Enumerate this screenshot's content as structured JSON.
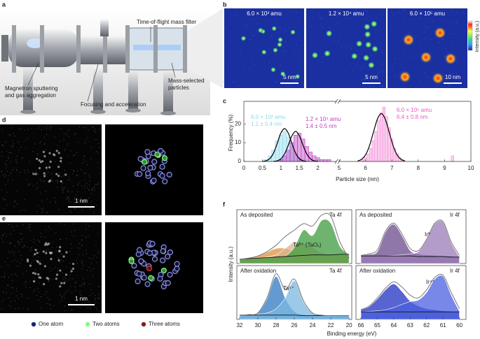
{
  "panel_labels": [
    "a",
    "b",
    "c",
    "d",
    "e",
    "f"
  ],
  "panel_a": {
    "labels": [
      "Time-of-flight mass filter",
      "Magnetron sputtering",
      "and gas aggregation",
      "Focusing and acceleration",
      "Mass-selected",
      "particles"
    ]
  },
  "panel_b": {
    "images": [
      {
        "label": "6.0 × 10³ amu",
        "scale_bar": "5 nm"
      },
      {
        "label": "1.2 × 10⁴ amu",
        "scale_bar": "5 nm"
      },
      {
        "label": "6.0 × 10⁵ amu",
        "scale_bar": "10 nm"
      }
    ],
    "colorbar_label": "Intensity (a.u.)"
  },
  "panel_d": {
    "scale_bar": "1 nm"
  },
  "panel_e": {
    "scale_bar": "1 nm"
  },
  "legend": [
    {
      "label": "One atom",
      "color": "#1a237e"
    },
    {
      "label": "Two atoms",
      "color": "#7dff7d"
    },
    {
      "label": "Three atoms",
      "color": "#8b1a1a"
    }
  ],
  "panel_f": {
    "xlabel": "Binding energy (eV)",
    "ylabel": "Intensity (a.u.)"
  },
  "chart_data": [
    {
      "type": "histogram",
      "xlabel": "Particle size (nm)",
      "ylabel": "Frequency (%)",
      "xlim": [
        0,
        10
      ],
      "x_break": [
        2.5,
        5
      ],
      "ylim": [
        0,
        32
      ],
      "xticks": [
        0,
        0.5,
        1,
        1.5,
        2,
        5,
        6,
        7,
        8,
        9,
        10
      ],
      "yticks": [
        0,
        10,
        20
      ],
      "bin_width": 0.1,
      "series": [
        {
          "color": "#8fd8ee",
          "x": [
            0.6,
            0.7,
            0.8,
            0.9,
            1.0,
            1.1,
            1.2,
            1.3,
            1.4,
            1.5,
            1.6
          ],
          "values": [
            1,
            3,
            6,
            11,
            14,
            16,
            13,
            8,
            4,
            2,
            1
          ]
        },
        {
          "color": "#c23bc2",
          "x": [
            1.0,
            1.1,
            1.2,
            1.3,
            1.4,
            1.5,
            1.6,
            1.7,
            1.8,
            1.9,
            2.0,
            2.1,
            2.2,
            2.3
          ],
          "values": [
            1,
            3,
            6,
            10,
            14,
            15,
            12,
            8,
            5,
            3,
            2,
            1,
            1,
            1
          ]
        },
        {
          "color": "#f590d8",
          "x": [
            5.9,
            6.0,
            6.1,
            6.2,
            6.3,
            6.4,
            6.5,
            6.6,
            6.7,
            6.8,
            6.9,
            7.0,
            7.1,
            7.2,
            7.3,
            7.4,
            9.3
          ],
          "values": [
            1,
            2,
            4,
            7,
            11,
            16,
            22,
            26,
            29,
            24,
            18,
            12,
            7,
            4,
            2,
            1,
            3
          ]
        }
      ],
      "fits": [
        {
          "color": "#000000",
          "x": [
            0.5,
            0.6,
            0.7,
            0.8,
            0.9,
            1.0,
            1.1,
            1.2,
            1.3,
            1.4,
            1.5,
            1.6,
            1.7
          ],
          "values": [
            0.06,
            0.37,
            1.5,
            4.4,
            9.5,
            15.1,
            17.5,
            15.1,
            9.5,
            4.4,
            1.5,
            0.37,
            0.06
          ]
        },
        {
          "color": "#000000",
          "x": [
            0.8,
            0.9,
            1.0,
            1.1,
            1.2,
            1.3,
            1.4,
            1.5,
            1.6,
            1.7,
            1.8,
            1.9,
            2.0
          ],
          "values": [
            0.06,
            0.34,
            1.4,
            4.0,
            8.6,
            13.7,
            16,
            13.7,
            8.6,
            4.0,
            1.4,
            0.34,
            0.06
          ]
        },
        {
          "color": "#000000",
          "x": [
            5.7,
            5.85,
            6.0,
            6.15,
            6.3,
            6.45,
            6.6,
            6.75,
            6.9,
            7.05,
            7.2,
            7.35,
            7.5
          ],
          "values": [
            0.28,
            1.12,
            3.45,
            8.3,
            15.5,
            22.5,
            25.5,
            22.5,
            15.5,
            8.3,
            3.45,
            1.12,
            0.28
          ]
        }
      ],
      "annotations": [
        {
          "text": "6.0 × 10³ amu",
          "color": "#8fd8ee"
        },
        {
          "text": "1.1 ± 0.4 nm",
          "color": "#8fd8ee"
        },
        {
          "text": "1.2 × 10⁴ amu",
          "color": "#c23bc2"
        },
        {
          "text": "1.4 ± 0.5 nm",
          "color": "#c23bc2"
        },
        {
          "text": "6.0 × 10⁵ amu",
          "color": "#e85cc0"
        },
        {
          "text": "6.4 ± 0.8 nm",
          "color": "#e85cc0"
        }
      ]
    },
    {
      "type": "area",
      "xlim": [
        32.3,
        19.7
      ],
      "ylim": [
        0,
        100
      ],
      "x": [
        32,
        31,
        30,
        29,
        28,
        27,
        26,
        25,
        24,
        23,
        22,
        21,
        20
      ],
      "envelope": [
        8,
        10,
        14,
        22,
        34,
        50,
        62,
        74,
        70,
        90,
        88,
        40,
        10
      ],
      "background": [
        8,
        9,
        10,
        11,
        12,
        13,
        14,
        15,
        16,
        16,
        16,
        17,
        17
      ],
      "series": [
        {
          "color": "#e09040",
          "values": [
            8,
            10,
            14,
            21,
            28,
            28,
            22,
            17,
            16,
            16,
            16,
            17,
            17
          ]
        },
        {
          "color": "#d9b48f",
          "values": [
            8,
            9,
            10,
            12,
            16,
            28,
            40,
            38,
            30,
            20,
            16,
            17,
            17
          ]
        },
        {
          "color": "#3d9b3d",
          "values": [
            8,
            9,
            10,
            11,
            12,
            14,
            30,
            62,
            52,
            80,
            75,
            32,
            17
          ]
        }
      ],
      "annotations": [
        "As deposited",
        "Ta 4f",
        "Taᵟ⁺ (TaOₓ)"
      ]
    },
    {
      "type": "area",
      "xlim": [
        66.3,
        59.6
      ],
      "ylim": [
        0,
        100
      ],
      "x": [
        66,
        65.5,
        65,
        64.5,
        64,
        63.5,
        63,
        62.5,
        62,
        61.5,
        61,
        60.5,
        60
      ],
      "envelope": [
        15,
        18,
        25,
        60,
        75,
        55,
        28,
        24,
        45,
        75,
        78,
        40,
        15
      ],
      "background": [
        14,
        14,
        14,
        14,
        14,
        14,
        14,
        13,
        13,
        13,
        13,
        12,
        12
      ],
      "series": [
        {
          "color": "#6a4a8c",
          "values": [
            15,
            17,
            22,
            58,
            73,
            52,
            24,
            18,
            16,
            15,
            14,
            13,
            12
          ]
        },
        {
          "color": "#9a7ab8",
          "values": [
            14,
            14,
            14,
            14,
            15,
            16,
            18,
            22,
            44,
            74,
            77,
            38,
            12
          ]
        }
      ],
      "annotations": [
        "As deposited",
        "Ir 4f",
        "Ir⁰"
      ]
    },
    {
      "type": "area",
      "xlim": [
        32.3,
        19.7
      ],
      "ylim": [
        0,
        100
      ],
      "xticks": [
        32,
        30,
        28,
        26,
        24,
        22,
        20
      ],
      "x": [
        32,
        31,
        30,
        29,
        28,
        27,
        26,
        25,
        24,
        23,
        22,
        21,
        20
      ],
      "envelope": [
        8,
        9,
        12,
        40,
        85,
        55,
        75,
        35,
        12,
        8,
        7,
        7,
        7
      ],
      "background": [
        8,
        8,
        8,
        8,
        8,
        8,
        8,
        7,
        7,
        7,
        7,
        7,
        7
      ],
      "series": [
        {
          "color": "#2f78c0",
          "values": [
            8,
            9,
            12,
            38,
            80,
            40,
            15,
            9,
            8,
            8,
            7,
            7,
            7
          ]
        },
        {
          "color": "#7ab8e0",
          "values": [
            8,
            9,
            10,
            12,
            20,
            40,
            72,
            33,
            12,
            8,
            7,
            7,
            7
          ]
        }
      ],
      "annotations": [
        "After oxidation",
        "Ta 4f",
        "Ta⁵⁺"
      ]
    },
    {
      "type": "area",
      "xlim": [
        66.3,
        59.6
      ],
      "ylim": [
        0,
        100
      ],
      "xticks": [
        66,
        65,
        64,
        63,
        62,
        61,
        60
      ],
      "x": [
        66,
        65.5,
        65,
        64.5,
        64,
        63.5,
        63,
        62.5,
        62,
        61.5,
        61,
        60.5,
        60
      ],
      "envelope": [
        18,
        25,
        40,
        58,
        70,
        60,
        45,
        40,
        55,
        78,
        82,
        50,
        20
      ],
      "background": [
        14,
        14,
        14,
        14,
        14,
        14,
        14,
        14,
        14,
        14,
        14,
        14,
        14
      ],
      "series": [
        {
          "color": "#2030c0",
          "values": [
            18,
            24,
            38,
            55,
            66,
            52,
            34,
            25,
            20,
            18,
            16,
            15,
            14
          ]
        },
        {
          "color": "#4a60e0",
          "values": [
            14,
            15,
            16,
            18,
            22,
            28,
            33,
            36,
            50,
            75,
            80,
            45,
            15
          ]
        }
      ],
      "annotations": [
        "After oxidation",
        "Ir 4f",
        "Ir⁴⁺"
      ]
    }
  ]
}
